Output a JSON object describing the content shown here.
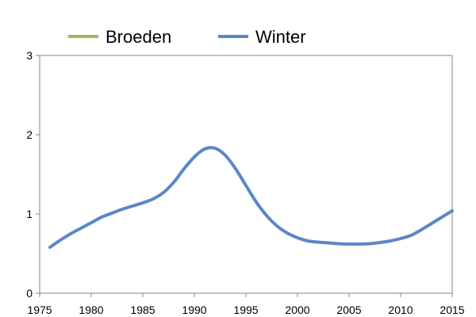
{
  "chart_data": {
    "type": "line",
    "title": "",
    "xlabel": "",
    "ylabel": "",
    "xlim": [
      1975,
      2015
    ],
    "ylim": [
      0,
      3
    ],
    "x_ticks": [
      1975,
      1980,
      1985,
      1990,
      1995,
      2000,
      2005,
      2010,
      2015
    ],
    "x_tick_labels": [
      "1975",
      "1980",
      "1985",
      "1990",
      "1995",
      "2000",
      "2005",
      "2010",
      "2015"
    ],
    "y_ticks": [
      0,
      1,
      2,
      3
    ],
    "y_tick_labels": [
      "0",
      "1",
      "2",
      "3"
    ],
    "grid": false,
    "legend_position": "top",
    "series": [
      {
        "name": "Broeden",
        "color": "#9BBB59",
        "x": [],
        "y": []
      },
      {
        "name": "Winter",
        "color": "#5A87C8",
        "x": [
          1976,
          1977,
          1978,
          1979,
          1980,
          1981,
          1982,
          1983,
          1984,
          1985,
          1986,
          1987,
          1988,
          1989,
          1990,
          1991,
          1992,
          1993,
          1994,
          1995,
          1996,
          1997,
          1998,
          1999,
          2000,
          2001,
          2002,
          2003,
          2004,
          2005,
          2006,
          2007,
          2008,
          2009,
          2010,
          2011,
          2012,
          2013,
          2014,
          2015
        ],
        "y": [
          0.58,
          0.67,
          0.75,
          0.82,
          0.89,
          0.96,
          1.01,
          1.06,
          1.1,
          1.14,
          1.19,
          1.27,
          1.4,
          1.57,
          1.72,
          1.82,
          1.83,
          1.74,
          1.57,
          1.36,
          1.15,
          0.98,
          0.85,
          0.76,
          0.7,
          0.66,
          0.645,
          0.635,
          0.625,
          0.62,
          0.62,
          0.625,
          0.64,
          0.66,
          0.69,
          0.73,
          0.8,
          0.88,
          0.96,
          1.04
        ]
      }
    ]
  }
}
